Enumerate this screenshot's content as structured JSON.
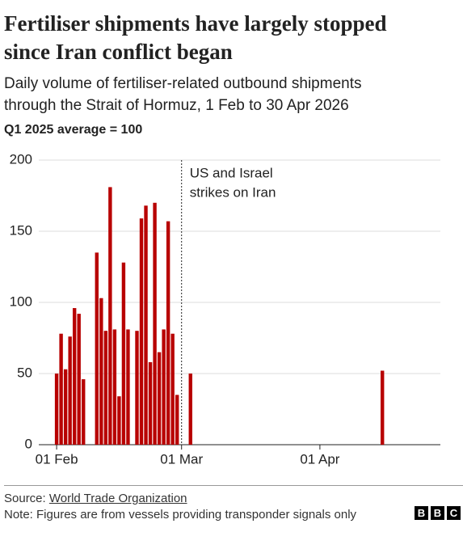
{
  "chart_data": {
    "type": "bar",
    "title": [
      "Fertiliser shipments have largely stopped",
      "since Iran conflict began"
    ],
    "subtitle": [
      "Daily volume of fertiliser-related outbound shipments",
      "through the Strait of Hormuz, 1 Feb to 30 Apr 2026"
    ],
    "y_label": "Q1 2025 average = 100",
    "x": [
      "02-01",
      "02-02",
      "02-03",
      "02-04",
      "02-05",
      "02-06",
      "02-07",
      "02-10",
      "02-11",
      "02-12",
      "02-13",
      "02-14",
      "02-15",
      "02-16",
      "02-17",
      "02-19",
      "02-20",
      "02-21",
      "02-22",
      "02-23",
      "02-24",
      "02-25",
      "02-26",
      "02-27",
      "02-28",
      "03-03",
      "04-15"
    ],
    "values": [
      50,
      78,
      53,
      76,
      96,
      92,
      46,
      135,
      103,
      80,
      181,
      81,
      34,
      128,
      81,
      80,
      159,
      168,
      58,
      170,
      65,
      81,
      157,
      78,
      35,
      50,
      52
    ],
    "color": "#b80000",
    "xlim": [
      "01-28",
      "04-28"
    ],
    "xticks": [
      {
        "value": "02-01",
        "label": "01 Feb"
      },
      {
        "value": "03-01",
        "label": "01 Mar"
      },
      {
        "value": "04-01",
        "label": "01 Apr"
      }
    ],
    "ylim": [
      0,
      200
    ],
    "yticks": [
      0,
      50,
      100,
      150,
      200
    ],
    "grid": true,
    "annotation": {
      "x": "03-01",
      "text": [
        "US and Israel",
        "strikes on Iran"
      ]
    },
    "source": {
      "label": "Source:",
      "name": "World Trade Organization"
    },
    "note": "Note: Figures are from vessels providing transponder signals only",
    "logo": [
      "B",
      "B",
      "C"
    ]
  }
}
